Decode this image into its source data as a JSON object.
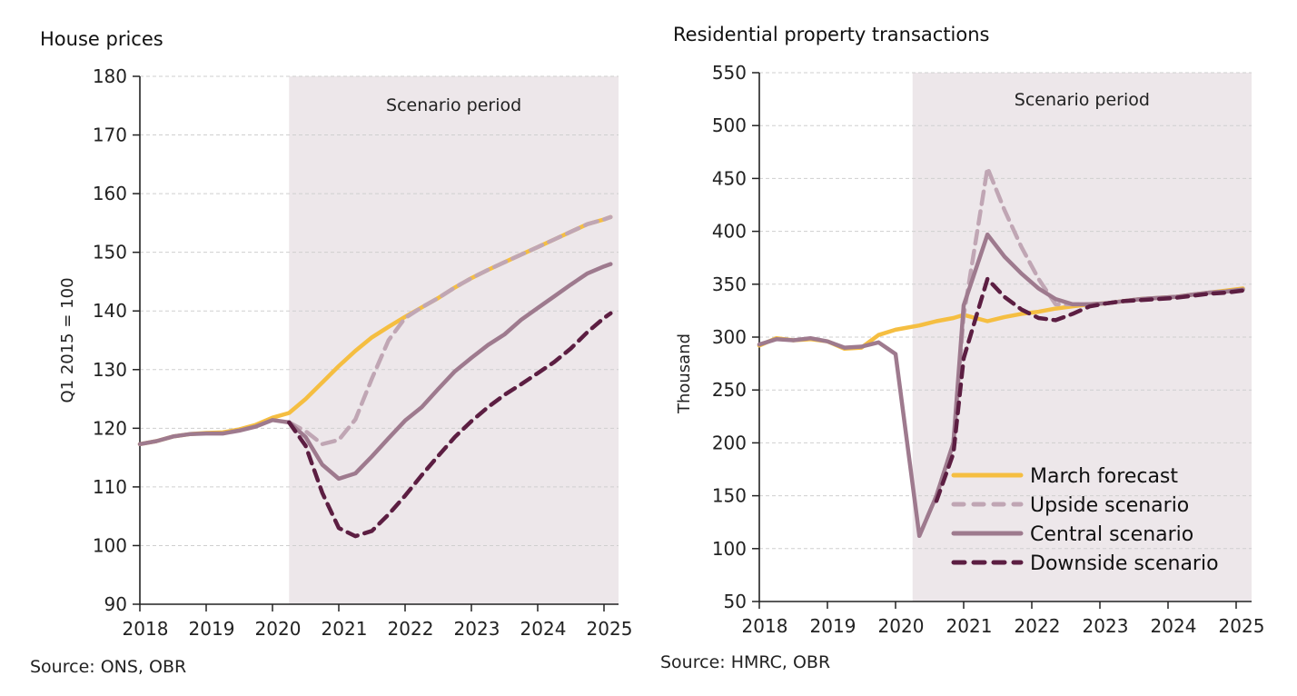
{
  "colors": {
    "march": "#F5BE41",
    "upside": "#C0A6B4",
    "central": "#9E7A8E",
    "downside": "#5C1E42",
    "shade": "#EDE7EA",
    "grid": "#cfcfcf",
    "axis": "#222222"
  },
  "chart_data": [
    {
      "type": "line",
      "title": "House prices",
      "xlabel": "",
      "ylabel": "Q1 2015 = 100",
      "ylim": [
        90,
        180
      ],
      "yticks": [
        90,
        100,
        110,
        120,
        130,
        140,
        150,
        160,
        170,
        180
      ],
      "xlim": [
        2018,
        2025.2
      ],
      "xticks": [
        2018,
        2019,
        2020,
        2021,
        2022,
        2023,
        2024,
        2025
      ],
      "grid": true,
      "shaded_region": {
        "label": "Scenario period",
        "from": 2020.25,
        "to": 2025.2
      },
      "source": "Source: ONS, OBR",
      "legend": "none",
      "x": [
        2018.0,
        2018.25,
        2018.5,
        2018.75,
        2019.0,
        2019.25,
        2019.5,
        2019.75,
        2020.0,
        2020.25,
        2020.5,
        2020.75,
        2021.0,
        2021.25,
        2021.5,
        2021.75,
        2022.0,
        2022.25,
        2022.5,
        2022.75,
        2023.0,
        2023.25,
        2023.5,
        2023.75,
        2024.0,
        2024.25,
        2024.5,
        2024.75,
        2025.0,
        2025.1
      ],
      "series": [
        {
          "key": "march",
          "name": "March forecast",
          "values": [
            117.3,
            117.8,
            118.6,
            119.0,
            119.2,
            119.3,
            119.8,
            120.6,
            121.8,
            122.6,
            125.0,
            127.8,
            130.6,
            133.2,
            135.5,
            137.3,
            139.0,
            140.6,
            142.2,
            144.0,
            145.6,
            147.0,
            148.3,
            149.6,
            150.9,
            152.2,
            153.5,
            154.8,
            155.6,
            156.0
          ]
        },
        {
          "key": "upside",
          "name": "Upside scenario",
          "values": [
            null,
            null,
            null,
            null,
            null,
            null,
            null,
            null,
            null,
            121.0,
            119.5,
            117.3,
            118.0,
            121.5,
            128.5,
            135.0,
            138.8,
            140.6,
            142.2,
            144.0,
            145.6,
            147.0,
            148.3,
            149.6,
            150.9,
            152.2,
            153.5,
            154.8,
            155.6,
            156.0
          ]
        },
        {
          "key": "central",
          "name": "Central scenario",
          "values": [
            117.3,
            117.8,
            118.6,
            119.0,
            119.1,
            119.1,
            119.6,
            120.3,
            121.4,
            121.0,
            118.5,
            113.8,
            111.4,
            112.3,
            115.2,
            118.3,
            121.3,
            123.6,
            126.7,
            129.7,
            132.0,
            134.2,
            136.0,
            138.5,
            140.5,
            142.5,
            144.5,
            146.4,
            147.6,
            148.0
          ]
        },
        {
          "key": "downside",
          "name": "Downside scenario",
          "values": [
            null,
            null,
            null,
            null,
            null,
            null,
            null,
            null,
            null,
            121.0,
            117.0,
            109.0,
            103.0,
            101.6,
            102.5,
            105.3,
            108.5,
            112.0,
            115.3,
            118.5,
            121.2,
            123.6,
            125.7,
            127.5,
            129.4,
            131.3,
            133.6,
            136.4,
            138.8,
            139.6
          ]
        }
      ]
    },
    {
      "type": "line",
      "title": "Residential property transactions",
      "xlabel": "",
      "ylabel": "Thousand",
      "ylim": [
        50,
        550
      ],
      "yticks": [
        50,
        100,
        150,
        200,
        250,
        300,
        350,
        400,
        450,
        500,
        550
      ],
      "xlim": [
        2018,
        2025.25
      ],
      "xticks": [
        2018,
        2019,
        2020,
        2021,
        2022,
        2023,
        2024,
        2025
      ],
      "grid": true,
      "shaded_region": {
        "label": "Scenario period",
        "from": 2020.25,
        "to": 2025.25
      },
      "source": "Source: HMRC, OBR",
      "legend": "bottom-right",
      "x": [
        2018.0,
        2018.25,
        2018.5,
        2018.75,
        2019.0,
        2019.25,
        2019.5,
        2019.75,
        2020.0,
        2020.35,
        2020.6,
        2020.85,
        2021.0,
        2021.35,
        2021.6,
        2021.85,
        2022.1,
        2022.35,
        2022.6,
        2022.85,
        2023.1,
        2023.35,
        2023.6,
        2023.85,
        2024.1,
        2024.35,
        2024.6,
        2024.85,
        2025.1
      ],
      "series": [
        {
          "key": "march",
          "name": "March forecast",
          "values": [
            292,
            299,
            297,
            298,
            296,
            289,
            290,
            302,
            307,
            311,
            315,
            318,
            321,
            315,
            319,
            322,
            324,
            327,
            329,
            331,
            332,
            334,
            336,
            337,
            338,
            340,
            342,
            344,
            346
          ]
        },
        {
          "key": "upside",
          "name": "Upside scenario",
          "values": [
            null,
            null,
            null,
            null,
            null,
            null,
            null,
            null,
            null,
            112,
            150,
            200,
            320,
            460,
            420,
            385,
            355,
            331,
            331,
            331,
            332,
            334,
            336,
            337,
            338,
            340,
            342,
            343,
            345
          ]
        },
        {
          "key": "central",
          "name": "Central scenario",
          "values": [
            293,
            298,
            297,
            299,
            296,
            290,
            291,
            295,
            284,
            112,
            150,
            200,
            330,
            397,
            376,
            360,
            346,
            336,
            331,
            331,
            332,
            334,
            336,
            337,
            338,
            340,
            342,
            343,
            345
          ]
        },
        {
          "key": "downside",
          "name": "Downside scenario",
          "values": [
            null,
            null,
            null,
            null,
            null,
            null,
            null,
            null,
            null,
            null,
            145,
            190,
            280,
            355,
            338,
            326,
            318,
            316,
            322,
            329,
            332,
            334,
            335,
            336,
            337,
            339,
            341,
            342,
            344
          ]
        }
      ]
    }
  ]
}
